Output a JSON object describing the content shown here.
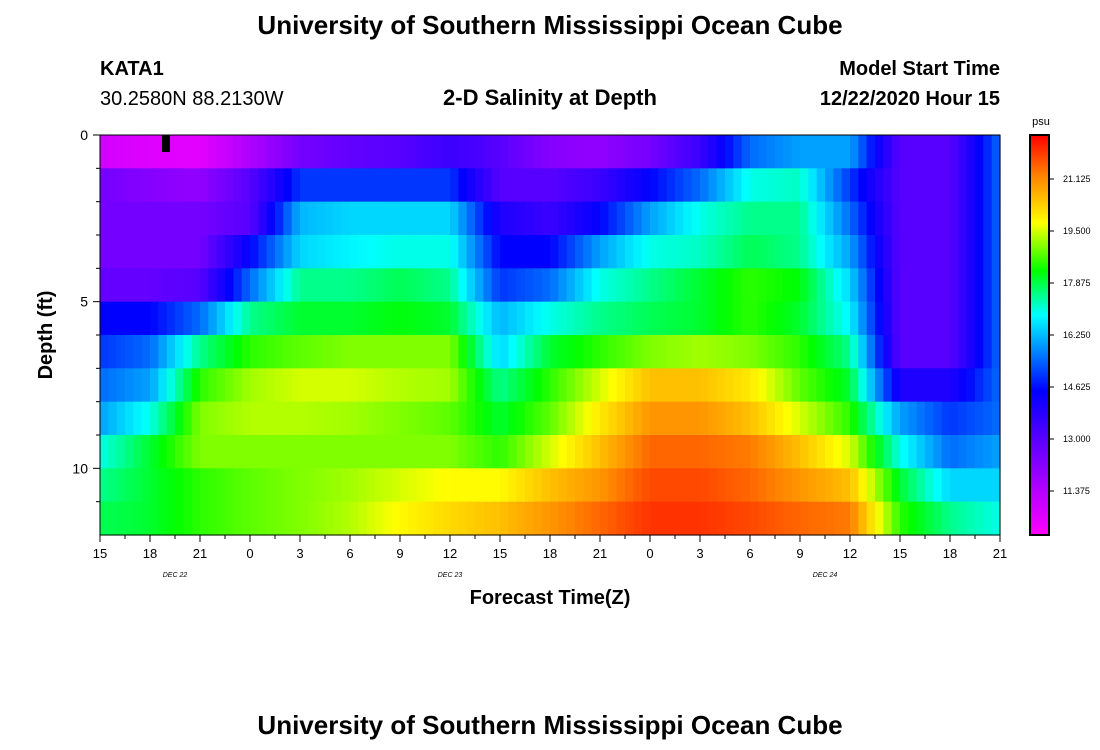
{
  "header": {
    "title": "University of Southern Mississippi Ocean Cube",
    "station": "KATA1",
    "coords": "30.2580N 88.2130W",
    "subtitle": "2-D Salinity at Depth",
    "model_label": "Model Start Time",
    "model_time": "12/22/2020 Hour 15"
  },
  "footer": {
    "title": "University of Southern Mississippi Ocean Cube"
  },
  "colors": {
    "scale": [
      "#ff00ff",
      "#a000ff",
      "#0000ff",
      "#00ffff",
      "#00ff00",
      "#ffff00",
      "#ff8000",
      "#ff0000"
    ]
  },
  "chart_data": {
    "type": "heatmap",
    "xlabel": "Forecast Time(Z)",
    "ylabel": "Depth (ft)",
    "x_range_hours": [
      0,
      54
    ],
    "x_ticks": [
      "15",
      "18",
      "21",
      "0",
      "3",
      "6",
      "9",
      "12",
      "15",
      "18",
      "21",
      "0",
      "3",
      "6",
      "9",
      "12",
      "15",
      "18",
      "21"
    ],
    "x_date_labels": [
      {
        "text": "DEC  22",
        "hour": 4.5
      },
      {
        "text": "DEC  23",
        "hour": 21
      },
      {
        "text": "DEC  24",
        "hour": 43.5
      }
    ],
    "ylim": [
      0,
      12
    ],
    "y_ticks": [
      "0",
      "5",
      "10"
    ],
    "y_tick_values": [
      0,
      5,
      10
    ],
    "colorbar": {
      "unit": "psu",
      "min": 10.0,
      "max": 22.5,
      "labels": [
        "21.125",
        "19.500",
        "17.875",
        "16.250",
        "14.625",
        "13.000",
        "11.375"
      ],
      "label_values": [
        21.125,
        19.5,
        17.875,
        16.25,
        14.625,
        13.0,
        11.375
      ]
    },
    "depth_levels": [
      0.5,
      1.5,
      2.5,
      3.5,
      4.5,
      5.5,
      6.5,
      7.5,
      8.5,
      9.5,
      10.5,
      11.5
    ],
    "time_knots": [
      0,
      3,
      6,
      9,
      12,
      15,
      18,
      21,
      24,
      27,
      30,
      33,
      36,
      39,
      42,
      45,
      48,
      51,
      54
    ],
    "salinity_rows": [
      [
        10.8,
        10.6,
        10.5,
        11.5,
        12.5,
        12.8,
        13.0,
        13.5,
        13.0,
        12.2,
        12.0,
        12.5,
        13.5,
        15.5,
        16.0,
        16.0,
        13.0,
        13.0,
        15.5
      ],
      [
        12.5,
        12.2,
        12.0,
        13.0,
        15.0,
        15.0,
        15.0,
        15.0,
        13.0,
        13.0,
        13.5,
        14.5,
        15.5,
        17.0,
        17.2,
        15.0,
        13.0,
        13.0,
        15.5
      ],
      [
        12.5,
        12.5,
        12.5,
        13.0,
        16.2,
        16.5,
        16.5,
        16.5,
        14.0,
        13.5,
        14.5,
        16.0,
        17.0,
        17.5,
        17.5,
        15.5,
        13.0,
        13.0,
        15.5
      ],
      [
        12.5,
        12.5,
        12.5,
        14.5,
        16.5,
        16.8,
        17.0,
        17.0,
        14.5,
        14.5,
        16.0,
        17.0,
        17.2,
        17.8,
        17.5,
        16.0,
        13.0,
        13.0,
        15.5
      ],
      [
        12.8,
        12.8,
        13.0,
        15.5,
        17.5,
        17.5,
        17.8,
        17.5,
        15.0,
        15.5,
        17.0,
        17.5,
        18.0,
        18.5,
        18.2,
        16.5,
        13.0,
        13.0,
        15.5
      ],
      [
        14.5,
        14.5,
        15.5,
        17.5,
        18.0,
        18.0,
        18.2,
        18.0,
        16.2,
        17.0,
        17.5,
        17.8,
        18.0,
        18.5,
        18.0,
        16.8,
        13.0,
        13.0,
        15.5
      ],
      [
        15.0,
        15.5,
        17.5,
        18.5,
        18.8,
        19.0,
        19.0,
        19.0,
        16.5,
        18.0,
        18.5,
        19.0,
        19.2,
        19.0,
        18.5,
        17.5,
        13.0,
        13.0,
        15.5
      ],
      [
        15.5,
        16.0,
        18.5,
        19.2,
        19.5,
        19.5,
        19.3,
        19.2,
        17.5,
        18.5,
        19.5,
        20.5,
        20.5,
        20.0,
        18.8,
        18.0,
        14.0,
        14.0,
        15.5
      ],
      [
        16.0,
        17.0,
        19.0,
        19.3,
        19.3,
        19.2,
        19.0,
        18.8,
        18.0,
        18.8,
        20.0,
        21.0,
        21.0,
        20.5,
        19.5,
        18.5,
        16.0,
        15.0,
        15.5
      ],
      [
        17.0,
        18.0,
        19.0,
        19.0,
        19.0,
        19.0,
        19.0,
        19.0,
        18.5,
        19.5,
        20.5,
        21.5,
        21.5,
        21.3,
        20.5,
        19.5,
        17.0,
        15.5,
        16.0
      ],
      [
        17.5,
        18.0,
        18.5,
        18.8,
        19.0,
        19.2,
        19.5,
        19.8,
        19.8,
        20.5,
        21.0,
        21.8,
        21.8,
        21.5,
        21.0,
        20.5,
        18.0,
        16.5,
        16.5
      ],
      [
        17.8,
        18.0,
        18.5,
        18.8,
        19.0,
        19.3,
        19.8,
        20.2,
        20.5,
        21.0,
        21.5,
        22.0,
        22.0,
        21.8,
        21.5,
        21.3,
        18.5,
        17.5,
        17.0
      ]
    ]
  }
}
